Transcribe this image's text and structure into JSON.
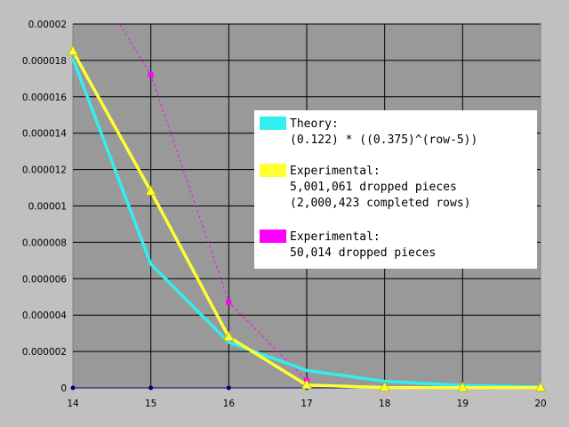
{
  "chart_data": {
    "type": "line",
    "x": [
      14,
      15,
      16,
      17,
      18,
      19,
      20
    ],
    "xlim": [
      14,
      20
    ],
    "ylim": [
      0,
      2e-05
    ],
    "xticks": [
      "14",
      "15",
      "16",
      "17",
      "18",
      "19",
      "20"
    ],
    "yticks": [
      {
        "v": 0,
        "label": "0"
      },
      {
        "v": 2e-06,
        "label": "0.000002"
      },
      {
        "v": 4e-06,
        "label": "0.000004"
      },
      {
        "v": 6e-06,
        "label": "0.000006"
      },
      {
        "v": 8e-06,
        "label": "0.000008"
      },
      {
        "v": 1e-05,
        "label": "0.00001"
      },
      {
        "v": 1.2e-05,
        "label": "0.000012"
      },
      {
        "v": 1.4e-05,
        "label": "0.000014"
      },
      {
        "v": 1.6e-05,
        "label": "0.000016"
      },
      {
        "v": 1.8e-05,
        "label": "0.000018"
      },
      {
        "v": 2e-05,
        "label": "0.00002"
      }
    ],
    "grid": true,
    "legend_position": "right",
    "series": [
      {
        "name_lines": [
          "Theory:",
          "(0.122) * ((0.375)^(row-5))"
        ],
        "color": "#33eeee",
        "style": "solid",
        "marker": "none",
        "points": [
          [
            14,
            1.81e-05
          ],
          [
            15,
            6.8e-06
          ],
          [
            16,
            2.5e-06
          ],
          [
            17,
            9.6e-07
          ],
          [
            18,
            3.6e-07
          ],
          [
            19,
            1.3e-07
          ],
          [
            20,
            5e-08
          ]
        ]
      },
      {
        "name_lines": [
          "Experimental:",
          "5,001,061 dropped pieces",
          "(2,000,423 completed rows)"
        ],
        "color": "#ffff33",
        "style": "solid",
        "marker": "triangle",
        "points": [
          [
            14,
            1.85e-05
          ],
          [
            15,
            1.08e-05
          ],
          [
            16,
            2.8e-06
          ],
          [
            17,
            1.5e-07
          ],
          [
            18,
            2e-08
          ],
          [
            19,
            1e-08
          ],
          [
            20,
            1e-08
          ]
        ]
      },
      {
        "name_lines": [
          "Experimental:",
          "50,014 dropped pieces"
        ],
        "color": "#ff00ff",
        "style": "dashed",
        "marker": "square",
        "points": [
          [
            15,
            1.72e-05
          ],
          [
            16,
            4.7e-06
          ],
          [
            17,
            4e-07
          ]
        ],
        "lead_in": [
          [
            14.6,
            2e-05
          ]
        ]
      }
    ],
    "baseline_markers": {
      "color": "#000080",
      "x": [
        14,
        15,
        16,
        17
      ]
    }
  }
}
